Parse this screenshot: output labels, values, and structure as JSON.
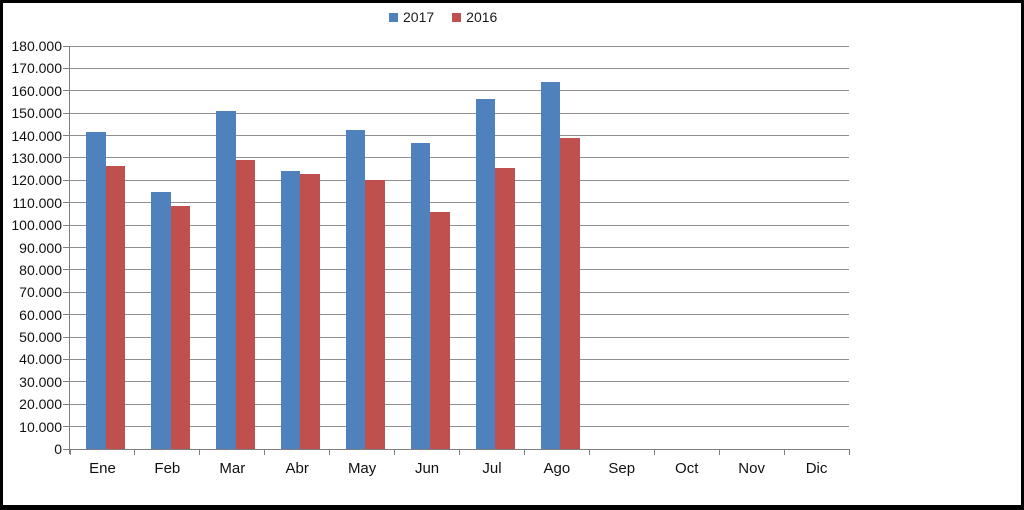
{
  "chart_data": {
    "type": "bar",
    "title": "",
    "xlabel": "",
    "ylabel": "",
    "categories": [
      "Ene",
      "Feb",
      "Mar",
      "Abr",
      "May",
      "Jun",
      "Jul",
      "Ago",
      "Sep",
      "Oct",
      "Nov",
      "Dic"
    ],
    "series": [
      {
        "name": "2017",
        "color": "#4F81BD",
        "values": [
          141500,
          115000,
          151000,
          124000,
          142500,
          136500,
          156500,
          164000,
          null,
          null,
          null,
          null
        ]
      },
      {
        "name": "2016",
        "color": "#C0504D",
        "values": [
          126500,
          108500,
          129000,
          123000,
          120000,
          106000,
          125500,
          139000,
          null,
          null,
          null,
          null
        ]
      }
    ],
    "ylim": [
      0,
      180000
    ],
    "ytick_step": 10000,
    "ytick_labels": [
      "0",
      "10.000",
      "20.000",
      "30.000",
      "40.000",
      "50.000",
      "60.000",
      "70.000",
      "80.000",
      "90.000",
      "100.000",
      "110.000",
      "120.000",
      "130.000",
      "140.000",
      "150.000",
      "160.000",
      "170.000",
      "180.000"
    ],
    "grid": true,
    "legend_position": "top-center",
    "colors": {
      "axis": "#7f7f7f",
      "gridline": "#8f8f8f",
      "frame_border": "#000000",
      "background": "#ffffff"
    }
  }
}
